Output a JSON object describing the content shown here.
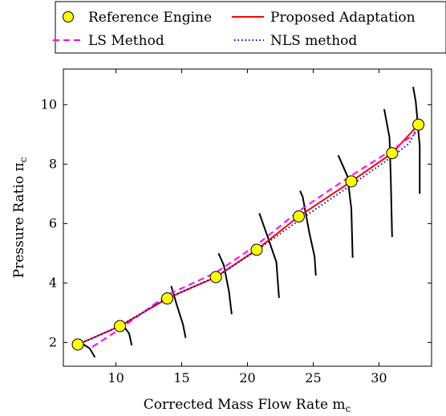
{
  "chart_data": {
    "type": "line",
    "xlabel": "Corrected Mass Flow Rate m",
    "xlabel_sub": "c",
    "ylabel": "Pressure Ratio π",
    "ylabel_sub": "c",
    "xlim": [
      6,
      34
    ],
    "ylim": [
      1.2,
      11.2
    ],
    "x_ticks": [
      10,
      15,
      20,
      25,
      30
    ],
    "y_ticks": [
      2,
      4,
      6,
      8,
      10
    ],
    "grid": false,
    "legend_position": "top",
    "legend": [
      "Reference Engine",
      "Proposed Adaptation",
      "LS Method",
      "NLS method"
    ],
    "series": [
      {
        "name": "Reference Engine",
        "style": "markers",
        "color": "#ffff00",
        "edge_color": "#000000",
        "x": [
          7.1,
          10.3,
          13.9,
          17.6,
          20.7,
          23.9,
          27.9,
          31.0,
          33.0
        ],
        "y": [
          1.93,
          2.55,
          3.48,
          4.2,
          5.12,
          6.24,
          7.42,
          8.37,
          9.33
        ]
      },
      {
        "name": "Proposed Adaptation",
        "style": "solid",
        "color": "#ff0000",
        "x": [
          7.1,
          10.3,
          13.9,
          17.6,
          20.7,
          23.9,
          27.9,
          31.0,
          33.0
        ],
        "y": [
          1.93,
          2.55,
          3.48,
          4.2,
          5.12,
          6.24,
          7.42,
          8.37,
          9.33
        ]
      },
      {
        "name": "LS Method",
        "style": "dashed",
        "color": "#ff00ff",
        "x": [
          8.2,
          10.3,
          13.9,
          17.6,
          20.7,
          23.9,
          27.9,
          31.0,
          32.8
        ],
        "y": [
          1.85,
          2.45,
          3.6,
          4.35,
          5.28,
          6.42,
          7.62,
          8.48,
          9.05
        ]
      },
      {
        "name": "NLS method",
        "style": "dotted",
        "color": "#0000cc",
        "x": [
          7.1,
          10.3,
          13.9,
          17.6,
          20.7,
          23.9,
          27.9,
          31.0,
          32.3,
          33.0
        ],
        "y": [
          1.93,
          2.55,
          3.5,
          4.2,
          5.1,
          6.1,
          7.3,
          8.25,
          8.7,
          9.33
        ]
      }
    ],
    "speed_lines": [
      [
        [
          7.3,
          2.0
        ],
        [
          8.0,
          1.8
        ],
        [
          8.4,
          1.5
        ]
      ],
      [
        [
          10.5,
          2.6
        ],
        [
          11.0,
          2.3
        ],
        [
          11.2,
          1.9
        ]
      ],
      [
        [
          14.2,
          3.9
        ],
        [
          14.6,
          3.3
        ],
        [
          15.1,
          2.6
        ],
        [
          15.3,
          2.15
        ]
      ],
      [
        [
          17.8,
          5.0
        ],
        [
          18.2,
          4.6
        ],
        [
          18.6,
          3.7
        ],
        [
          18.8,
          2.95
        ]
      ],
      [
        [
          20.9,
          6.35
        ],
        [
          21.5,
          5.6
        ],
        [
          22.2,
          4.7
        ],
        [
          22.4,
          3.5
        ]
      ],
      [
        [
          24.0,
          7.1
        ],
        [
          24.2,
          6.9
        ],
        [
          24.7,
          5.7
        ],
        [
          25.1,
          4.9
        ],
        [
          25.2,
          4.25
        ]
      ],
      [
        [
          26.9,
          8.3
        ],
        [
          27.6,
          7.6
        ],
        [
          27.9,
          6.5
        ],
        [
          28.0,
          4.85
        ]
      ],
      [
        [
          30.4,
          9.85
        ],
        [
          30.8,
          8.9
        ],
        [
          30.9,
          7.5
        ],
        [
          31.0,
          5.55
        ]
      ],
      [
        [
          32.6,
          10.6
        ],
        [
          32.8,
          10.1
        ],
        [
          33.1,
          8.6
        ],
        [
          33.1,
          7.0
        ]
      ]
    ]
  }
}
